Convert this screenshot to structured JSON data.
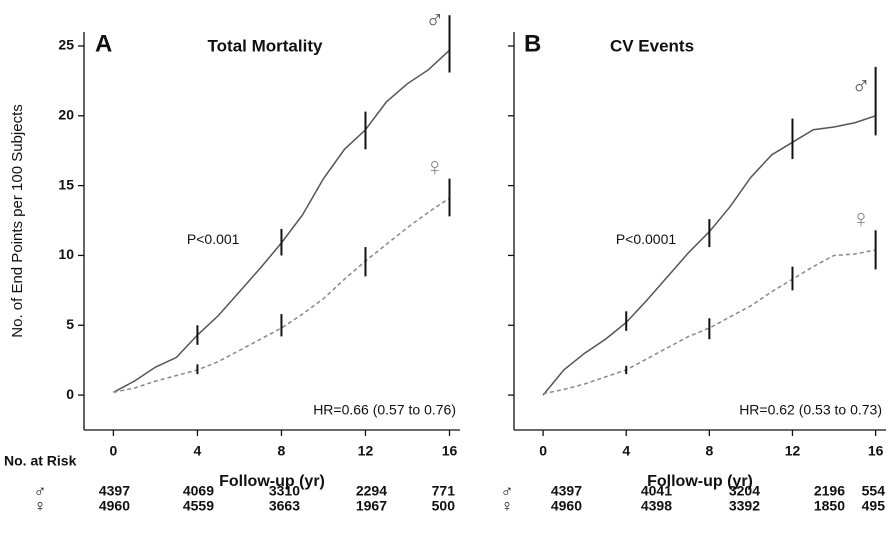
{
  "chart_data": [
    {
      "type": "line",
      "panel": "A",
      "title": "Total Mortality",
      "y_label": "No. of End Points per 100 Subjects",
      "x_label": "Follow-up (yr)",
      "annotations": [
        "P<0.001",
        "HR=0.66 (0.57 to 0.76)"
      ],
      "x": [
        0,
        1,
        2,
        3,
        4,
        5,
        6,
        7,
        8,
        9,
        10,
        11,
        12,
        13,
        14,
        15,
        16
      ],
      "xlim": [
        -1.4,
        16.5
      ],
      "xticks": [
        0,
        4,
        8,
        12,
        16
      ],
      "ylim": [
        -2.5,
        26
      ],
      "yticks": [
        0,
        5,
        10,
        15,
        20,
        25
      ],
      "show_ytick_labels": true,
      "error_x": [
        4,
        8,
        12,
        16
      ],
      "series": [
        {
          "name": "♂",
          "color": "#555555",
          "dashed": false,
          "values": [
            0.2,
            1,
            2,
            2.7,
            4.3,
            5.7,
            7.4,
            9.1,
            10.9,
            12.9,
            15.5,
            17.6,
            19,
            21,
            22.3,
            23.3,
            24.7
          ],
          "error_low": [
            3.6,
            10,
            17.6,
            23.1
          ],
          "error_high": [
            5,
            11.9,
            20.3,
            27.2
          ]
        },
        {
          "name": "♀",
          "color": "#888888",
          "dashed": true,
          "values": [
            0.2,
            0.5,
            1,
            1.4,
            1.8,
            2.4,
            3.2,
            4,
            4.8,
            5.8,
            6.9,
            8.3,
            9.6,
            10.8,
            12,
            13.1,
            14.1
          ],
          "error_low": [
            1.5,
            4.2,
            8.5,
            12.8
          ],
          "error_high": [
            2.2,
            5.8,
            10.6,
            15.5
          ]
        }
      ],
      "risk_table": {
        "title": "No. at Risk",
        "rows": [
          {
            "label": "♂",
            "values": [
              4397,
              4069,
              3310,
              2294,
              771
            ]
          },
          {
            "label": "♀",
            "values": [
              4960,
              4559,
              3663,
              1967,
              500
            ]
          }
        ]
      }
    },
    {
      "type": "line",
      "panel": "B",
      "title": "CV Events",
      "x_label": "Follow-up (yr)",
      "annotations": [
        "P<0.0001",
        "HR=0.62 (0.53 to 0.73)"
      ],
      "x": [
        0,
        1,
        2,
        3,
        4,
        5,
        6,
        7,
        8,
        9,
        10,
        11,
        12,
        13,
        14,
        15,
        16
      ],
      "xlim": [
        -1.4,
        16.5
      ],
      "xticks": [
        0,
        4,
        8,
        12,
        16
      ],
      "ylim": [
        -2.5,
        26
      ],
      "yticks": [
        0,
        5,
        10,
        15,
        20,
        25
      ],
      "show_ytick_labels": false,
      "error_x": [
        4,
        8,
        12,
        16
      ],
      "series": [
        {
          "name": "♂",
          "color": "#555555",
          "dashed": false,
          "values": [
            0,
            1.8,
            3,
            4,
            5.2,
            6.8,
            8.5,
            10.2,
            11.7,
            13.5,
            15.6,
            17.2,
            18.1,
            19,
            19.2,
            19.5,
            20
          ],
          "error_low": [
            4.6,
            10.6,
            16.9,
            18.6
          ],
          "error_high": [
            6,
            12.6,
            19.8,
            23.5
          ]
        },
        {
          "name": "♀",
          "color": "#888888",
          "dashed": true,
          "values": [
            0.1,
            0.4,
            0.8,
            1.3,
            1.8,
            2.6,
            3.4,
            4.2,
            4.8,
            5.6,
            6.4,
            7.4,
            8.3,
            9.2,
            10,
            10.1,
            10.4
          ],
          "error_low": [
            1.5,
            4,
            7.5,
            9
          ],
          "error_high": [
            2.1,
            5.5,
            9.2,
            11.8
          ]
        }
      ],
      "risk_table": {
        "rows": [
          {
            "label": "♂",
            "values": [
              4397,
              4041,
              3204,
              2196,
              554
            ]
          },
          {
            "label": "♀",
            "values": [
              4960,
              4398,
              3392,
              1850,
              495
            ]
          }
        ]
      }
    }
  ]
}
